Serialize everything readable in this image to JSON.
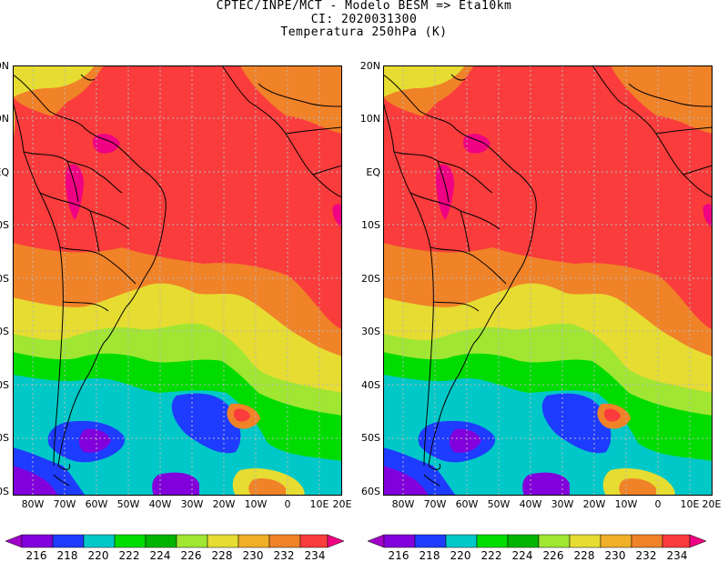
{
  "title": {
    "line1": "CPTEC/INPE/MCT -  Modelo BESM => Eta10km",
    "line2": "CI: 2020031300",
    "line3": "Temperatura 250hPa (K)"
  },
  "map": {
    "lat_labels_left": [
      "0N",
      "0N",
      "EQ",
      "0S",
      "0S",
      "0S",
      "0S",
      "0S",
      "0S"
    ],
    "lat_labels_right": [
      "20N",
      "10N",
      "EQ",
      "10S",
      "20S",
      "30S",
      "40S",
      "50S",
      "60S"
    ],
    "lon_labels_left": [
      "80W",
      "70W",
      "60W",
      "50W",
      "40W",
      "30W",
      "20W",
      "10W",
      "0",
      "10E",
      "20E"
    ],
    "lon_labels_right": [
      "80W",
      "70W",
      "60W",
      "50W",
      "40W",
      "30W",
      "20W",
      "10W",
      "0",
      "10E",
      "20E"
    ],
    "panels": [
      "left-panel",
      "right-panel"
    ]
  },
  "colorbar": {
    "labels": [
      "216",
      "218",
      "220",
      "222",
      "224",
      "226",
      "228",
      "230",
      "232",
      "234"
    ],
    "colors": [
      "#a000c8",
      "#8200dc",
      "#1e3cff",
      "#00c8c8",
      "#00dc00",
      "#a0e632",
      "#e6dc32",
      "#f08228",
      "#fa3c3c",
      "#f00082"
    ]
  },
  "field_colors": {
    "magenta": "#f00082",
    "red": "#fa3c3c",
    "orange": "#f08228",
    "yellow": "#e6dc32",
    "lime": "#a0e632",
    "green": "#00dc00",
    "cyan": "#00c8c8",
    "blue": "#1e3cff",
    "violet": "#8200dc",
    "purple": "#a000c8"
  }
}
